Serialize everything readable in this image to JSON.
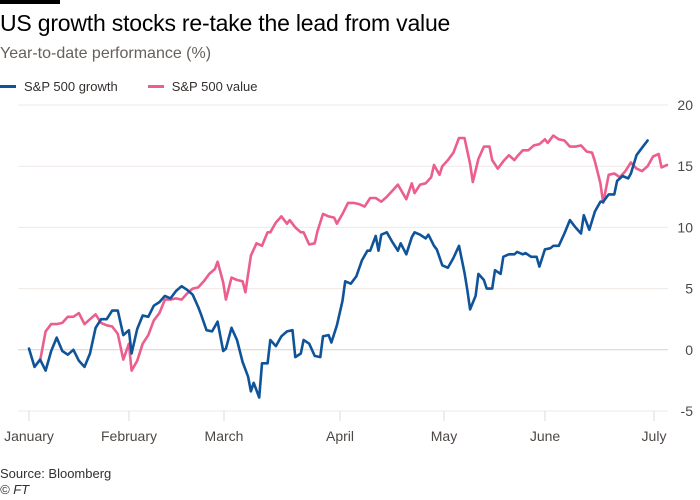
{
  "header": {
    "title": "US growth stocks re-take the lead from value",
    "subtitle": "Year-to-date performance (%)"
  },
  "legend": [
    {
      "label": "S&P 500 growth",
      "color": "#0f5499"
    },
    {
      "label": "S&P 500 value",
      "color": "#eb5e8d"
    }
  ],
  "footer": {
    "source": "Source: Bloomberg",
    "copyright": "© FT"
  },
  "chart_data": {
    "type": "line",
    "title": "US growth stocks re-take the lead from value",
    "subtitle": "Year-to-date performance (%)",
    "xlabel": "",
    "ylabel": "Year-to-date performance (%)",
    "ylim": [
      -5,
      20
    ],
    "yticks": [
      20,
      15,
      10,
      5,
      0,
      -5
    ],
    "x_unit": "day of year",
    "xlim": [
      1,
      190
    ],
    "xticks": [
      {
        "label": "January",
        "day": 1
      },
      {
        "label": "February",
        "day": 32
      },
      {
        "label": "March",
        "day": 60
      },
      {
        "label": "April",
        "day": 91
      },
      {
        "label": "May",
        "day": 121
      },
      {
        "label": "June",
        "day": 152
      },
      {
        "label": "July",
        "day": 182
      }
    ],
    "grid": true,
    "legend_position": "top-left",
    "series": [
      {
        "name": "S&P 500 growth",
        "color": "#0f5499",
        "points": [
          [
            1,
            0.1
          ],
          [
            3,
            -1.4
          ],
          [
            5,
            -0.8
          ],
          [
            7,
            -1.7
          ],
          [
            9,
            -0.1
          ],
          [
            11,
            1.0
          ],
          [
            13,
            -0.1
          ],
          [
            15,
            -0.4
          ],
          [
            17,
            0.0
          ],
          [
            19,
            -0.9
          ],
          [
            21,
            -1.4
          ],
          [
            23,
            -0.3
          ],
          [
            25,
            1.8
          ],
          [
            27,
            2.5
          ],
          [
            29,
            2.5
          ],
          [
            31,
            3.2
          ],
          [
            33,
            3.2
          ],
          [
            35,
            1.2
          ],
          [
            37,
            1.6
          ],
          [
            38,
            -0.3
          ],
          [
            40,
            1.7
          ],
          [
            42,
            2.8
          ],
          [
            44,
            2.7
          ],
          [
            46,
            3.6
          ],
          [
            48,
            3.9
          ],
          [
            50,
            4.4
          ],
          [
            52,
            4.2
          ],
          [
            54,
            4.8
          ],
          [
            56,
            5.2
          ],
          [
            58,
            4.9
          ],
          [
            60,
            4.5
          ],
          [
            62,
            3.5
          ],
          [
            63,
            2.9
          ],
          [
            65,
            1.6
          ],
          [
            67,
            1.5
          ],
          [
            69,
            2.3
          ],
          [
            71,
            -0.1
          ],
          [
            72,
            0.1
          ],
          [
            74,
            1.8
          ],
          [
            76,
            0.8
          ],
          [
            78,
            -1.0
          ],
          [
            80,
            -2.2
          ],
          [
            81,
            -3.4
          ],
          [
            82,
            -2.7
          ],
          [
            84,
            -3.9
          ],
          [
            85,
            -1.1
          ],
          [
            87,
            -1.1
          ],
          [
            88,
            0.8
          ],
          [
            90,
            0.3
          ],
          [
            92,
            1.1
          ],
          [
            94,
            1.5
          ],
          [
            96,
            1.6
          ],
          [
            97,
            -0.6
          ],
          [
            99,
            -0.3
          ],
          [
            100,
            0.8
          ],
          [
            102,
            0.5
          ],
          [
            104,
            -0.5
          ],
          [
            106,
            -0.6
          ],
          [
            107,
            1.1
          ],
          [
            109,
            1.2
          ],
          [
            110,
            0.6
          ],
          [
            112,
            2.0
          ],
          [
            114,
            4.0
          ],
          [
            115,
            5.6
          ],
          [
            117,
            5.4
          ],
          [
            119,
            6.0
          ],
          [
            121,
            7.3
          ],
          [
            123,
            8.1
          ],
          [
            124,
            8.1
          ],
          [
            126,
            9.3
          ],
          [
            127,
            8.1
          ],
          [
            128,
            9.4
          ],
          [
            130,
            9.6
          ],
          [
            132,
            8.8
          ],
          [
            134,
            8.1
          ],
          [
            135,
            8.7
          ],
          [
            137,
            7.8
          ],
          [
            139,
            9.2
          ],
          [
            140,
            9.6
          ],
          [
            142,
            9.4
          ],
          [
            144,
            9.1
          ],
          [
            145,
            9.4
          ],
          [
            147,
            8.5
          ],
          [
            148,
            8.2
          ],
          [
            150,
            6.9
          ],
          [
            152,
            6.7
          ],
          [
            154,
            7.5
          ],
          [
            156,
            8.5
          ],
          [
            158,
            6.3
          ],
          [
            159,
            4.9
          ],
          [
            160,
            3.3
          ],
          [
            162,
            4.4
          ],
          [
            163,
            6.2
          ],
          [
            165,
            5.7
          ],
          [
            166,
            5.0
          ],
          [
            168,
            5.0
          ],
          [
            169,
            6.5
          ],
          [
            171,
            6.2
          ],
          [
            172,
            7.6
          ],
          [
            174,
            7.8
          ],
          [
            176,
            7.8
          ],
          [
            177,
            8.0
          ],
          [
            179,
            7.8
          ],
          [
            180,
            7.9
          ],
          [
            182,
            7.6
          ],
          [
            184,
            7.6
          ],
          [
            185,
            6.8
          ],
          [
            187,
            8.2
          ],
          [
            189,
            8.3
          ],
          [
            190,
            8.5
          ],
          [
            192,
            8.5
          ],
          [
            194,
            9.5
          ],
          [
            196,
            10.6
          ],
          [
            198,
            10.0
          ],
          [
            200,
            9.5
          ],
          [
            201,
            11.0
          ],
          [
            203,
            9.8
          ],
          [
            205,
            11.3
          ],
          [
            207,
            12.1
          ],
          [
            208,
            12.1
          ],
          [
            210,
            12.7
          ],
          [
            212,
            12.7
          ],
          [
            213,
            13.8
          ],
          [
            215,
            14.2
          ],
          [
            217,
            14.0
          ],
          [
            218,
            14.4
          ],
          [
            220,
            15.9
          ],
          [
            222,
            16.5
          ],
          [
            224,
            17.1
          ]
        ]
      },
      {
        "name": "S&P 500 value",
        "color": "#eb5e8d",
        "points": [
          [
            5,
            -0.9
          ],
          [
            7,
            1.5
          ],
          [
            9,
            2.1
          ],
          [
            11,
            2.1
          ],
          [
            13,
            2.2
          ],
          [
            15,
            2.7
          ],
          [
            17,
            2.7
          ],
          [
            19,
            3.0
          ],
          [
            21,
            2.1
          ],
          [
            23,
            2.5
          ],
          [
            25,
            2.9
          ],
          [
            27,
            2.2
          ],
          [
            29,
            2.0
          ],
          [
            31,
            1.9
          ],
          [
            33,
            1.3
          ],
          [
            35,
            -0.8
          ],
          [
            37,
            0.5
          ],
          [
            38,
            -1.7
          ],
          [
            40,
            -0.9
          ],
          [
            42,
            0.5
          ],
          [
            44,
            1.2
          ],
          [
            46,
            2.4
          ],
          [
            48,
            3.0
          ],
          [
            50,
            4.1
          ],
          [
            52,
            4.1
          ],
          [
            54,
            4.2
          ],
          [
            56,
            4.1
          ],
          [
            58,
            4.6
          ],
          [
            60,
            5.0
          ],
          [
            62,
            5.1
          ],
          [
            64,
            5.6
          ],
          [
            66,
            6.2
          ],
          [
            68,
            6.6
          ],
          [
            69,
            7.2
          ],
          [
            71,
            5.5
          ],
          [
            72,
            4.1
          ],
          [
            74,
            5.9
          ],
          [
            76,
            5.7
          ],
          [
            78,
            5.6
          ],
          [
            79,
            4.7
          ],
          [
            81,
            7.7
          ],
          [
            83,
            8.7
          ],
          [
            85,
            8.5
          ],
          [
            87,
            9.6
          ],
          [
            88,
            9.6
          ],
          [
            90,
            10.4
          ],
          [
            92,
            10.9
          ],
          [
            94,
            10.3
          ],
          [
            95,
            10.6
          ],
          [
            97,
            10.0
          ],
          [
            99,
            9.6
          ],
          [
            100,
            9.6
          ],
          [
            102,
            8.6
          ],
          [
            104,
            8.7
          ],
          [
            105,
            9.7
          ],
          [
            107,
            11.1
          ],
          [
            109,
            10.9
          ],
          [
            111,
            10.8
          ],
          [
            112,
            10.3
          ],
          [
            114,
            11.1
          ],
          [
            116,
            12.0
          ],
          [
            118,
            12.0
          ],
          [
            120,
            11.9
          ],
          [
            122,
            11.7
          ],
          [
            124,
            12.4
          ],
          [
            126,
            12.4
          ],
          [
            128,
            12.1
          ],
          [
            130,
            12.5
          ],
          [
            132,
            13.0
          ],
          [
            134,
            13.5
          ],
          [
            135,
            13.1
          ],
          [
            137,
            12.3
          ],
          [
            139,
            13.6
          ],
          [
            140,
            12.8
          ],
          [
            142,
            13.5
          ],
          [
            144,
            13.6
          ],
          [
            146,
            14.1
          ],
          [
            147,
            15.1
          ],
          [
            149,
            14.3
          ],
          [
            150,
            15.0
          ],
          [
            152,
            15.5
          ],
          [
            154,
            16.1
          ],
          [
            156,
            17.3
          ],
          [
            158,
            17.3
          ],
          [
            160,
            15.2
          ],
          [
            161,
            13.7
          ],
          [
            163,
            15.6
          ],
          [
            165,
            16.6
          ],
          [
            167,
            16.6
          ],
          [
            168,
            15.5
          ],
          [
            170,
            14.8
          ],
          [
            172,
            15.4
          ],
          [
            174,
            15.9
          ],
          [
            176,
            15.5
          ],
          [
            177,
            15.8
          ],
          [
            179,
            16.3
          ],
          [
            181,
            16.3
          ],
          [
            183,
            16.7
          ],
          [
            185,
            16.8
          ],
          [
            187,
            17.2
          ],
          [
            188,
            16.9
          ],
          [
            190,
            17.5
          ],
          [
            192,
            17.2
          ],
          [
            194,
            17.1
          ],
          [
            196,
            16.6
          ],
          [
            198,
            16.6
          ],
          [
            200,
            16.7
          ],
          [
            202,
            16.2
          ],
          [
            204,
            16.1
          ],
          [
            205,
            15.4
          ],
          [
            207,
            13.6
          ],
          [
            208,
            12.0
          ],
          [
            210,
            14.3
          ],
          [
            212,
            14.4
          ],
          [
            214,
            14.1
          ],
          [
            216,
            14.6
          ],
          [
            218,
            15.3
          ],
          [
            220,
            14.8
          ],
          [
            222,
            14.6
          ],
          [
            224,
            15.0
          ],
          [
            226,
            15.8
          ],
          [
            228,
            16.0
          ],
          [
            229,
            14.9
          ],
          [
            231,
            15.1
          ]
        ]
      }
    ]
  }
}
